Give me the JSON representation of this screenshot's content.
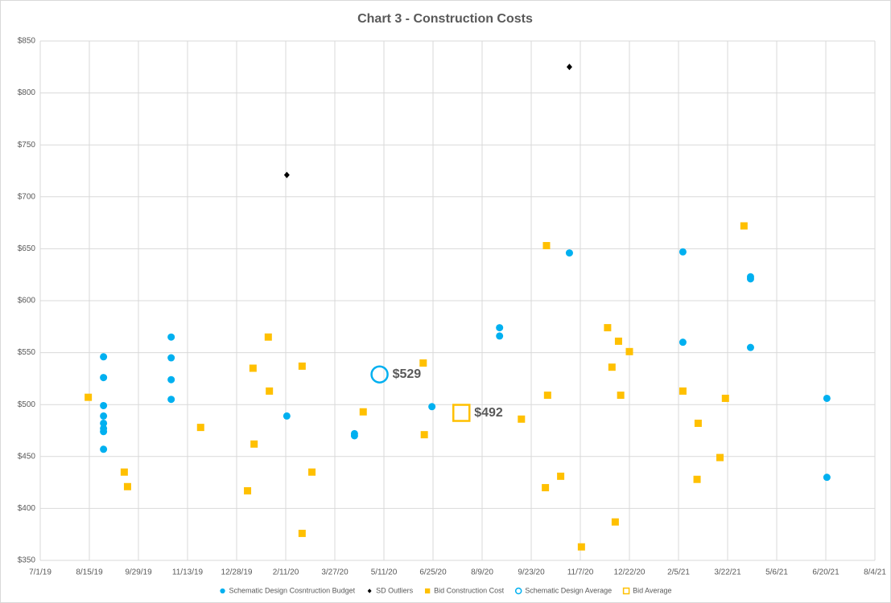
{
  "chart_data": {
    "type": "scatter",
    "title": "Chart 3 - Construction Costs",
    "xlim": [
      43647,
      44412
    ],
    "xticks": [
      {
        "value": 43647,
        "label": "7/1/19"
      },
      {
        "value": 43692,
        "label": "8/15/19"
      },
      {
        "value": 43737,
        "label": "9/29/19"
      },
      {
        "value": 43782,
        "label": "11/13/19"
      },
      {
        "value": 43827,
        "label": "12/28/19"
      },
      {
        "value": 43872,
        "label": "2/11/20"
      },
      {
        "value": 43917,
        "label": "3/27/20"
      },
      {
        "value": 43962,
        "label": "5/11/20"
      },
      {
        "value": 44007,
        "label": "6/25/20"
      },
      {
        "value": 44052,
        "label": "8/9/20"
      },
      {
        "value": 44097,
        "label": "9/23/20"
      },
      {
        "value": 44142,
        "label": "11/7/20"
      },
      {
        "value": 44187,
        "label": "12/22/20"
      },
      {
        "value": 44232,
        "label": "2/5/21"
      },
      {
        "value": 44277,
        "label": "3/22/21"
      },
      {
        "value": 44322,
        "label": "5/6/21"
      },
      {
        "value": 44367,
        "label": "6/20/21"
      },
      {
        "value": 44412,
        "label": "8/4/21"
      }
    ],
    "ylim": [
      350,
      850
    ],
    "yticks": [
      {
        "value": 350,
        "label": "$350"
      },
      {
        "value": 400,
        "label": "$400"
      },
      {
        "value": 450,
        "label": "$450"
      },
      {
        "value": 500,
        "label": "$500"
      },
      {
        "value": 550,
        "label": "$550"
      },
      {
        "value": 600,
        "label": "$600"
      },
      {
        "value": 650,
        "label": "$650"
      },
      {
        "value": 700,
        "label": "$700"
      },
      {
        "value": 750,
        "label": "$750"
      },
      {
        "value": 800,
        "label": "$800"
      },
      {
        "value": 850,
        "label": "$850"
      }
    ],
    "grid": true,
    "legend": "bottom",
    "series": [
      {
        "name": "Schematic Design Cosntruction Budget",
        "color": "#00b0f0",
        "marker": "circle",
        "x": [
          43705,
          43705,
          43705,
          43705,
          43705,
          43705,
          43705,
          43705,
          43767,
          43767,
          43767,
          43767,
          43873,
          43935,
          43935,
          44006,
          44068,
          44068,
          44132,
          44236,
          44236,
          44298,
          44298,
          44298,
          44368,
          44368
        ],
        "values": [
          546,
          526,
          499,
          489,
          482,
          477,
          474,
          457,
          565,
          545,
          524,
          505,
          489,
          472,
          470,
          498,
          574,
          566,
          646,
          647,
          560,
          623,
          621,
          555,
          506,
          430
        ]
      },
      {
        "name": "SD Outliers",
        "color": "#000000",
        "marker": "diamond",
        "x": [
          43873,
          44132
        ],
        "values": [
          721,
          825
        ]
      },
      {
        "name": "Bid Construction Cost",
        "color": "#ffc000",
        "marker": "square",
        "x": [
          43691,
          43724,
          43727,
          43794,
          43837,
          43842,
          43843,
          43856,
          43857,
          43887,
          43887,
          43896,
          43943,
          43998,
          43999,
          44088,
          44110,
          44111,
          44112,
          44124,
          44143,
          44167,
          44171,
          44174,
          44177,
          44179,
          44187,
          44236,
          44249,
          44250,
          44270,
          44275,
          44292
        ],
        "values": [
          507,
          435,
          421,
          478,
          417,
          535,
          462,
          565,
          513,
          376,
          537,
          435,
          493,
          540,
          471,
          486,
          420,
          653,
          509,
          431,
          363,
          574,
          536,
          387,
          561,
          509,
          551,
          513,
          428,
          482,
          449,
          506,
          672
        ]
      },
      {
        "name": "Schematic Design Average",
        "color": "#00b0f0",
        "marker": "open-circle",
        "x": [
          43958
        ],
        "values": [
          529
        ],
        "value_labels": [
          "$529"
        ]
      },
      {
        "name": "Bid Average",
        "color": "#ffc000",
        "marker": "open-square",
        "x": [
          44033
        ],
        "values": [
          492
        ],
        "value_labels": [
          "$492"
        ]
      }
    ]
  }
}
